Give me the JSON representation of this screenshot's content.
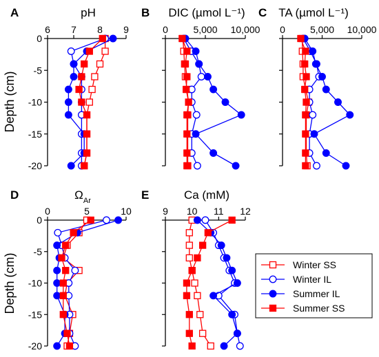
{
  "y_axis_label": "Depth (cm)",
  "y_ticks": [
    0,
    -5,
    -10,
    -15,
    -20
  ],
  "colors": {
    "winter_ss": "#ff0000",
    "winter_il": "#0000ff",
    "summer_il": "#0000ff",
    "summer_ss": "#ff0000"
  },
  "legend": [
    {
      "label": "Winter SS",
      "color": "#ff0000",
      "marker": "square",
      "filled": false
    },
    {
      "label": "Winter IL",
      "color": "#0000ff",
      "marker": "circle",
      "filled": false
    },
    {
      "label": "Summer IL",
      "color": "#0000ff",
      "marker": "circle",
      "filled": true
    },
    {
      "label": "Summer SS",
      "color": "#ff0000",
      "marker": "square",
      "filled": true
    }
  ],
  "chart_data": [
    {
      "type": "line",
      "letter": "A",
      "title": "pH",
      "xlim": [
        6,
        9
      ],
      "x_ticks": [
        6,
        7,
        8,
        9
      ],
      "ylim": [
        -20,
        0
      ],
      "grid": false,
      "series": [
        {
          "name": "Winter SS",
          "x": [
            8.2,
            8.2,
            8.0,
            7.8,
            7.7,
            7.6,
            7.5,
            7.5,
            7.5,
            7.4
          ],
          "y": [
            0,
            -2,
            -4,
            -6,
            -8,
            -10,
            -12,
            -15,
            -18,
            -20
          ]
        },
        {
          "name": "Winter IL",
          "x": [
            8.2,
            6.9,
            7.0,
            7.3,
            7.3,
            7.3,
            7.3,
            7.3,
            7.3,
            7.3
          ],
          "y": [
            0,
            -2,
            -4,
            -6,
            -8,
            -10,
            -12,
            -15,
            -18,
            -20
          ]
        },
        {
          "name": "Summer IL",
          "x": [
            8.5,
            7.5,
            7.0,
            7.0,
            6.8,
            6.8,
            6.8,
            7.4,
            7.4,
            6.9
          ],
          "y": [
            0,
            -2,
            -4,
            -6,
            -8,
            -10,
            -12,
            -15,
            -18,
            -20
          ]
        },
        {
          "name": "Summer SS",
          "x": [
            8.1,
            7.6,
            7.4,
            7.3,
            7.2,
            7.3,
            7.5,
            7.5,
            7.5,
            7.4
          ],
          "y": [
            0,
            -2,
            -4,
            -6,
            -8,
            -10,
            -12,
            -15,
            -18,
            -20
          ]
        }
      ]
    },
    {
      "type": "line",
      "letter": "B",
      "title": "DIC (µmol L⁻¹)",
      "xlim": [
        0,
        10000
      ],
      "x_ticks": [
        0,
        5000,
        10000
      ],
      "x_tick_labels": [
        "0",
        "5,000",
        "10,000"
      ],
      "ylim": [
        -20,
        0
      ],
      "grid": false,
      "series": [
        {
          "name": "Winter SS",
          "x": [
            2200,
            2300,
            2400,
            2500,
            2700,
            2900,
            2800,
            2800,
            2800,
            2800
          ],
          "y": [
            0,
            -2,
            -4,
            -6,
            -8,
            -10,
            -12,
            -15,
            -18,
            -20
          ]
        },
        {
          "name": "Winter IL",
          "x": [
            2300,
            3200,
            4200,
            4500,
            3300,
            3300,
            3900,
            3300,
            3300,
            4000
          ],
          "y": [
            0,
            -2,
            -4,
            -6,
            -8,
            -10,
            -12,
            -15,
            -18,
            -20
          ]
        },
        {
          "name": "Summer IL",
          "x": [
            2500,
            3800,
            4200,
            5300,
            6000,
            7500,
            9500,
            3800,
            6000,
            8800
          ],
          "y": [
            0,
            -2,
            -4,
            -6,
            -8,
            -10,
            -12,
            -15,
            -18,
            -20
          ]
        },
        {
          "name": "Summer SS",
          "x": [
            2100,
            2700,
            2500,
            2700,
            2600,
            2900,
            2700,
            2700,
            2700,
            2700
          ],
          "y": [
            0,
            -2,
            -4,
            -6,
            -8,
            -10,
            -12,
            -15,
            -18,
            -20
          ]
        }
      ]
    },
    {
      "type": "line",
      "letter": "C",
      "title": "TA (µmol L⁻¹)",
      "xlim": [
        0,
        10000
      ],
      "x_ticks": [
        0,
        5000,
        10000
      ],
      "x_tick_labels": [
        "0",
        "5,000",
        "10,000"
      ],
      "ylim": [
        -20,
        0
      ],
      "grid": false,
      "series": [
        {
          "name": "Winter SS",
          "x": [
            2500,
            2500,
            2600,
            2600,
            2900,
            3300,
            3000,
            3000,
            3000,
            3100
          ],
          "y": [
            0,
            -2,
            -4,
            -6,
            -8,
            -10,
            -12,
            -15,
            -18,
            -20
          ]
        },
        {
          "name": "Winter IL",
          "x": [
            2600,
            3500,
            4300,
            4600,
            3400,
            3400,
            3800,
            3400,
            3400,
            4300
          ],
          "y": [
            0,
            -2,
            -4,
            -6,
            -8,
            -10,
            -12,
            -15,
            -18,
            -20
          ]
        },
        {
          "name": "Summer IL",
          "x": [
            2800,
            3800,
            4200,
            5000,
            5500,
            7000,
            8500,
            4000,
            5500,
            8000
          ],
          "y": [
            0,
            -2,
            -4,
            -6,
            -8,
            -10,
            -12,
            -15,
            -18,
            -20
          ]
        },
        {
          "name": "Summer SS",
          "x": [
            2300,
            2900,
            2800,
            3000,
            2800,
            3000,
            2900,
            2900,
            2900,
            2900
          ],
          "y": [
            0,
            -2,
            -4,
            -6,
            -8,
            -10,
            -12,
            -15,
            -18,
            -20
          ]
        }
      ]
    },
    {
      "type": "line",
      "letter": "D",
      "title": "Ω",
      "title_sub": "Ar",
      "xlim": [
        0,
        10
      ],
      "x_ticks": [
        0,
        5,
        10
      ],
      "ylim": [
        -20,
        0
      ],
      "grid": false,
      "series": [
        {
          "name": "Winter SS",
          "x": [
            5.0,
            4.0,
            2.5,
            2.0,
            4.0,
            2.5,
            2.2,
            3.2,
            2.8,
            2.5
          ],
          "y": [
            0,
            -2,
            -4,
            -6,
            -8,
            -10,
            -12,
            -15,
            -18,
            -20
          ]
        },
        {
          "name": "Winter IL",
          "x": [
            7.5,
            1.3,
            1.8,
            2.2,
            3.5,
            2.7,
            2.7,
            2.8,
            2.8,
            3.5
          ],
          "y": [
            0,
            -2,
            -4,
            -6,
            -8,
            -10,
            -12,
            -15,
            -18,
            -20
          ]
        },
        {
          "name": "Summer IL",
          "x": [
            9.0,
            3.8,
            1.2,
            1.5,
            1.2,
            1.2,
            1.2,
            2.2,
            2.2,
            1.2
          ],
          "y": [
            0,
            -2,
            -4,
            -6,
            -8,
            -10,
            -12,
            -15,
            -18,
            -20
          ]
        },
        {
          "name": "Summer SS",
          "x": [
            5.5,
            3.3,
            2.3,
            1.8,
            2.3,
            2.0,
            2.0,
            2.0,
            2.5,
            2.8
          ],
          "y": [
            0,
            -2,
            -4,
            -6,
            -8,
            -10,
            -12,
            -15,
            -18,
            -20
          ]
        }
      ]
    },
    {
      "type": "line",
      "letter": "E",
      "title": "Ca (mM)",
      "xlim": [
        9,
        12
      ],
      "x_ticks": [
        9,
        10,
        11,
        12
      ],
      "ylim": [
        -20,
        0
      ],
      "grid": false,
      "series": [
        {
          "name": "Winter SS",
          "x": [
            10.0,
            9.9,
            9.9,
            9.9,
            10.0,
            10.1,
            10.2,
            10.3,
            10.4,
            10.7
          ],
          "y": [
            0,
            -2,
            -4,
            -6,
            -8,
            -10,
            -12,
            -15,
            -18,
            -20
          ]
        },
        {
          "name": "Winter IL",
          "x": [
            10.5,
            10.8,
            11.0,
            11.2,
            11.4,
            11.6,
            11.0,
            11.6,
            11.7,
            11.8
          ],
          "y": [
            0,
            -2,
            -4,
            -6,
            -8,
            -10,
            -12,
            -15,
            -18,
            -20
          ]
        },
        {
          "name": "Summer IL",
          "x": [
            10.2,
            10.7,
            11.1,
            11.3,
            11.5,
            11.7,
            10.8,
            11.5,
            11.7,
            11.2
          ],
          "y": [
            0,
            -2,
            -4,
            -6,
            -8,
            -10,
            -12,
            -15,
            -18,
            -20
          ]
        },
        {
          "name": "Summer SS",
          "x": [
            11.5,
            10.6,
            10.4,
            10.2,
            10.0,
            9.8,
            9.8,
            9.9,
            9.9,
            10.0
          ],
          "y": [
            0,
            -2,
            -4,
            -6,
            -8,
            -10,
            -12,
            -15,
            -18,
            -20
          ]
        }
      ]
    }
  ]
}
